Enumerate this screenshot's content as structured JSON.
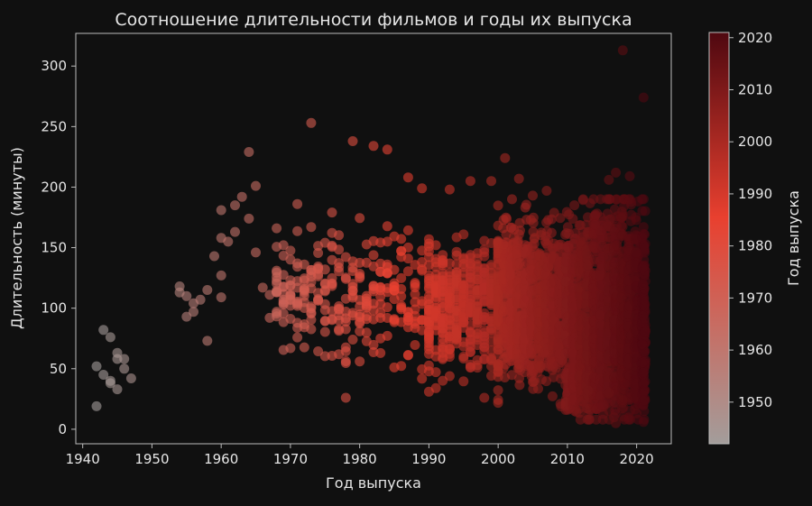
{
  "chart_data": {
    "type": "scatter",
    "title": "Соотношение длительности фильмов и годы их выпуска",
    "xlabel": "Год выпуска",
    "ylabel": "Длительность (минуты)",
    "xlim": [
      1939,
      2025
    ],
    "ylim": [
      -12,
      327
    ],
    "x_ticks": [
      1940,
      1950,
      1960,
      1970,
      1980,
      1990,
      2000,
      2010,
      2020
    ],
    "y_ticks": [
      0,
      50,
      100,
      150,
      200,
      250,
      300
    ],
    "grid": false,
    "colorbar": {
      "label": "Год выпуска",
      "range": [
        1942,
        2021
      ],
      "ticks": [
        1950,
        1960,
        1970,
        1980,
        1990,
        2000,
        2010,
        2020
      ],
      "color_low": "#a39d9b",
      "color_mid": "#e8402f",
      "color_high": "#4f0810"
    },
    "marker_opacity": 0.6,
    "points": [
      [
        1942,
        52
      ],
      [
        1942,
        19
      ],
      [
        1943,
        82
      ],
      [
        1943,
        45
      ],
      [
        1944,
        76
      ],
      [
        1944,
        40
      ],
      [
        1944,
        38
      ],
      [
        1945,
        63
      ],
      [
        1945,
        58
      ],
      [
        1945,
        33
      ],
      [
        1946,
        58
      ],
      [
        1946,
        50
      ],
      [
        1947,
        42
      ],
      [
        1954,
        118
      ],
      [
        1954,
        113
      ],
      [
        1955,
        110
      ],
      [
        1955,
        93
      ],
      [
        1956,
        104
      ],
      [
        1956,
        97
      ],
      [
        1957,
        107
      ],
      [
        1958,
        115
      ],
      [
        1958,
        73
      ],
      [
        1959,
        143
      ],
      [
        1960,
        181
      ],
      [
        1960,
        158
      ],
      [
        1960,
        127
      ],
      [
        1960,
        109
      ],
      [
        1961,
        155
      ],
      [
        1962,
        185
      ],
      [
        1962,
        163
      ],
      [
        1963,
        192
      ],
      [
        1964,
        229
      ],
      [
        1964,
        174
      ],
      [
        1965,
        201
      ],
      [
        1965,
        146
      ],
      [
        1966,
        117
      ],
      [
        1967,
        111
      ],
      [
        1967,
        92
      ],
      [
        1968,
        166
      ],
      [
        1968,
        131
      ],
      [
        1969,
        152
      ],
      [
        1970,
        67
      ],
      [
        1971,
        186
      ],
      [
        1972,
        105
      ],
      [
        1973,
        253
      ],
      [
        1973,
        167
      ],
      [
        1976,
        179
      ],
      [
        1977,
        90
      ],
      [
        1978,
        26
      ],
      [
        1979,
        238
      ],
      [
        1980,
        56
      ],
      [
        1982,
        234
      ],
      [
        1983,
        75
      ],
      [
        1984,
        231
      ],
      [
        1985,
        51
      ],
      [
        1987,
        208
      ],
      [
        1987,
        61
      ],
      [
        1989,
        199
      ],
      [
        1990,
        31
      ],
      [
        1991,
        34
      ],
      [
        1992,
        71
      ],
      [
        1993,
        198
      ],
      [
        1995,
        60
      ],
      [
        1996,
        205
      ],
      [
        1998,
        26
      ],
      [
        1999,
        205
      ],
      [
        2000,
        48
      ],
      [
        2001,
        224
      ],
      [
        2002,
        190
      ],
      [
        2003,
        207
      ],
      [
        2005,
        39
      ],
      [
        2005,
        193
      ],
      [
        2007,
        197
      ],
      [
        2009,
        21
      ],
      [
        2011,
        185
      ],
      [
        2013,
        32
      ],
      [
        2014,
        169
      ],
      [
        2016,
        206
      ],
      [
        2016,
        30
      ],
      [
        2017,
        212
      ],
      [
        2017,
        5
      ],
      [
        2018,
        313
      ],
      [
        2018,
        24
      ],
      [
        2019,
        209
      ],
      [
        2020,
        13
      ],
      [
        2020,
        146
      ],
      [
        2021,
        274
      ],
      [
        2021,
        167
      ],
      [
        2021,
        6
      ]
    ]
  }
}
